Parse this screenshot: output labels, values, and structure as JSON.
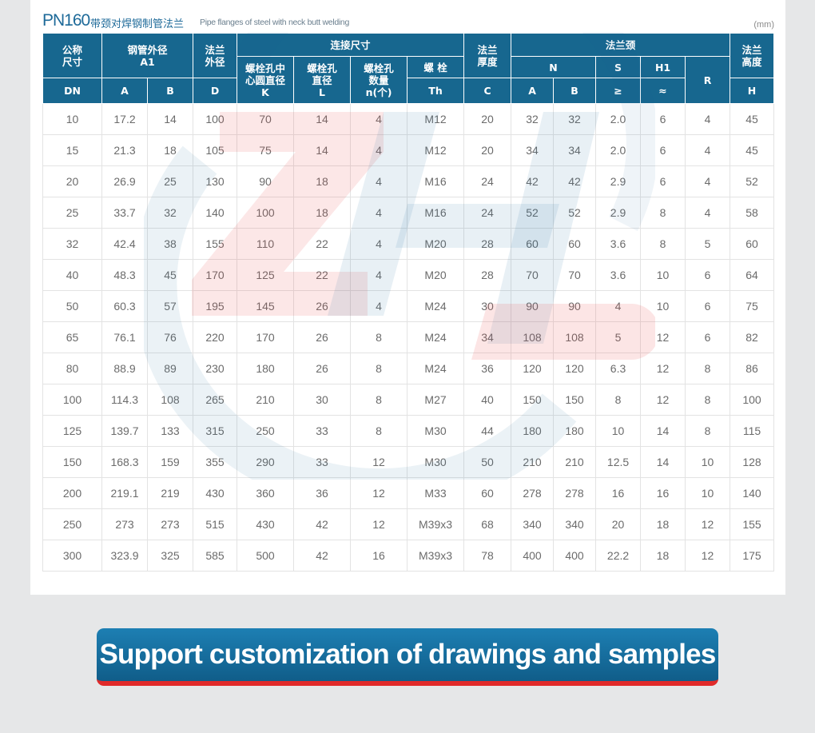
{
  "title": {
    "code": "PN160",
    "cn": "带颈对焊钢制管法兰",
    "en": "Pipe flanges of steel with neck butt welding",
    "unit": "(mm)"
  },
  "header": {
    "nominal": "公称\n尺寸",
    "pipe_od": "钢管外径\nA1",
    "flange_od": "法兰\n外径",
    "connection": "连接尺寸",
    "thickness": "法兰\n厚度",
    "neck": "法兰颈",
    "height": "法兰\n高度",
    "bolt_circle": "螺栓孔中\n心圆直径\nK",
    "bolt_hole": "螺栓孔\n直径\nL",
    "bolt_count": "螺栓孔\n数量\nn(个)",
    "bolt": "螺 栓",
    "th": "Th",
    "n": "N",
    "s": "S",
    "s_sym": "≥",
    "h1": "H1",
    "h1_sym": "≈",
    "r": "R",
    "dn": "DN",
    "a": "A",
    "b": "B",
    "d": "D",
    "c": "C",
    "na": "A",
    "nb": "B",
    "h": "H"
  },
  "rows": [
    [
      "10",
      "17.2",
      "14",
      "100",
      "70",
      "14",
      "4",
      "M12",
      "20",
      "32",
      "32",
      "2.0",
      "6",
      "4",
      "45"
    ],
    [
      "15",
      "21.3",
      "18",
      "105",
      "75",
      "14",
      "4",
      "M12",
      "20",
      "34",
      "34",
      "2.0",
      "6",
      "4",
      "45"
    ],
    [
      "20",
      "26.9",
      "25",
      "130",
      "90",
      "18",
      "4",
      "M16",
      "24",
      "42",
      "42",
      "2.9",
      "6",
      "4",
      "52"
    ],
    [
      "25",
      "33.7",
      "32",
      "140",
      "100",
      "18",
      "4",
      "M16",
      "24",
      "52",
      "52",
      "2.9",
      "8",
      "4",
      "58"
    ],
    [
      "32",
      "42.4",
      "38",
      "155",
      "110",
      "22",
      "4",
      "M20",
      "28",
      "60",
      "60",
      "3.6",
      "8",
      "5",
      "60"
    ],
    [
      "40",
      "48.3",
      "45",
      "170",
      "125",
      "22",
      "4",
      "M20",
      "28",
      "70",
      "70",
      "3.6",
      "10",
      "6",
      "64"
    ],
    [
      "50",
      "60.3",
      "57",
      "195",
      "145",
      "26",
      "4",
      "M24",
      "30",
      "90",
      "90",
      "4",
      "10",
      "6",
      "75"
    ],
    [
      "65",
      "76.1",
      "76",
      "220",
      "170",
      "26",
      "8",
      "M24",
      "34",
      "108",
      "108",
      "5",
      "12",
      "6",
      "82"
    ],
    [
      "80",
      "88.9",
      "89",
      "230",
      "180",
      "26",
      "8",
      "M24",
      "36",
      "120",
      "120",
      "6.3",
      "12",
      "8",
      "86"
    ],
    [
      "100",
      "114.3",
      "108",
      "265",
      "210",
      "30",
      "8",
      "M27",
      "40",
      "150",
      "150",
      "8",
      "12",
      "8",
      "100"
    ],
    [
      "125",
      "139.7",
      "133",
      "315",
      "250",
      "33",
      "8",
      "M30",
      "44",
      "180",
      "180",
      "10",
      "14",
      "8",
      "115"
    ],
    [
      "150",
      "168.3",
      "159",
      "355",
      "290",
      "33",
      "12",
      "M30",
      "50",
      "210",
      "210",
      "12.5",
      "14",
      "10",
      "128"
    ],
    [
      "200",
      "219.1",
      "219",
      "430",
      "360",
      "36",
      "12",
      "M33",
      "60",
      "278",
      "278",
      "16",
      "16",
      "10",
      "140"
    ],
    [
      "250",
      "273",
      "273",
      "515",
      "430",
      "42",
      "12",
      "M39x3",
      "68",
      "340",
      "340",
      "20",
      "18",
      "12",
      "155"
    ],
    [
      "300",
      "323.9",
      "325",
      "585",
      "500",
      "42",
      "16",
      "M39x3",
      "78",
      "400",
      "400",
      "22.2",
      "18",
      "12",
      "175"
    ]
  ],
  "banner": {
    "text": "Support customization of drawings and samples"
  },
  "colors": {
    "header_bg": "#17678f",
    "banner_bg": "#1d7fb3",
    "banner_accent": "#e02a2a",
    "watermark_red": "#e84848",
    "watermark_blue": "#1e6a99"
  }
}
